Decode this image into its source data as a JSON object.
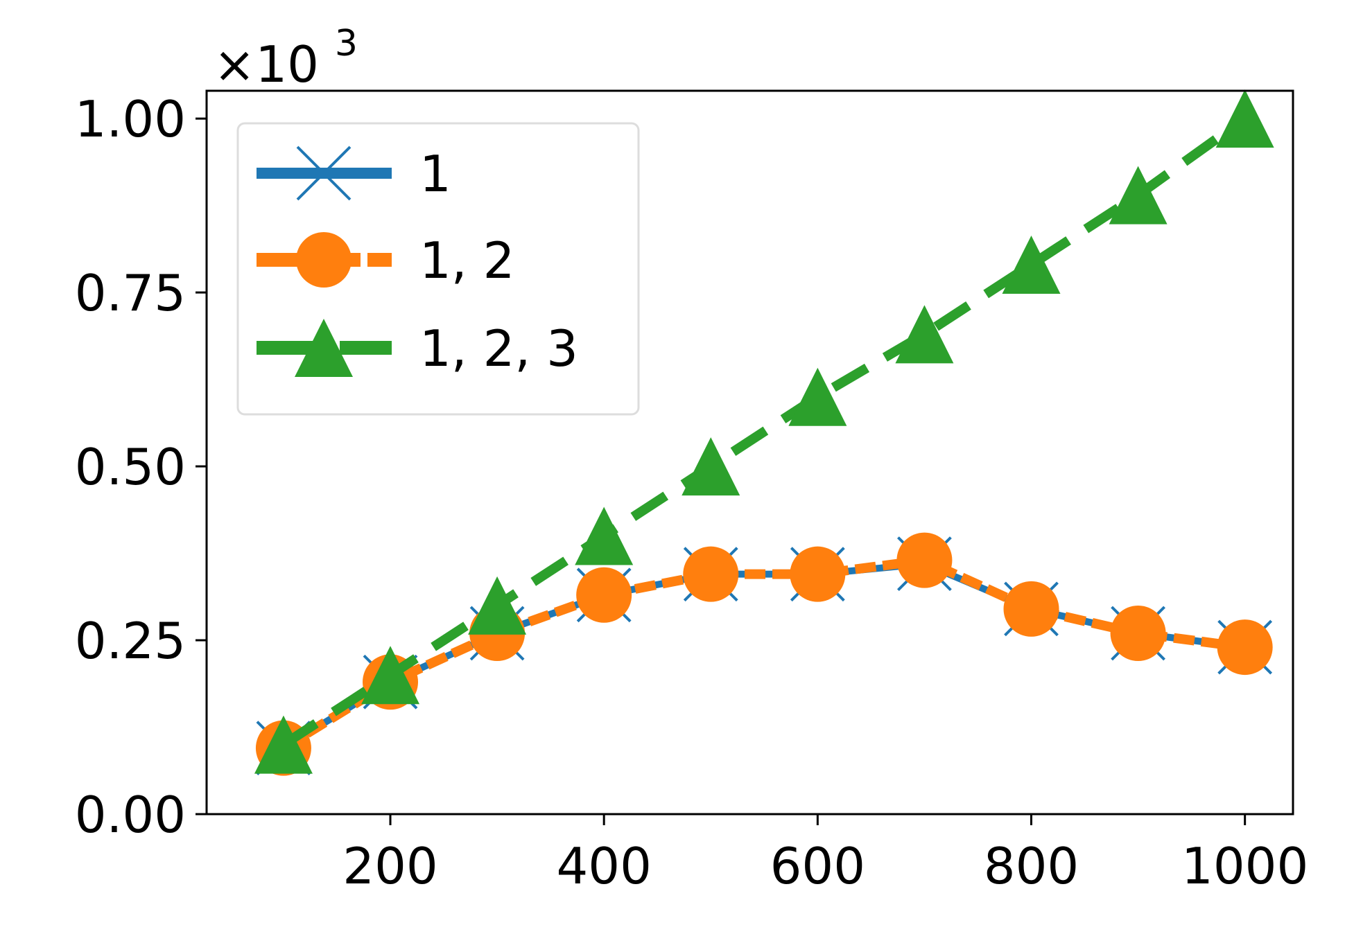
{
  "chart_data": {
    "type": "line",
    "multiplier_label": "×10",
    "multiplier_exponent": "3",
    "x": [
      100,
      200,
      300,
      400,
      500,
      600,
      700,
      800,
      900,
      1000
    ],
    "xlim": [
      28,
      1045
    ],
    "ylim": [
      0.0,
      1.04
    ],
    "x_ticks": [
      200,
      400,
      600,
      800,
      1000
    ],
    "x_tick_labels": [
      "200",
      "400",
      "600",
      "800",
      "1000"
    ],
    "y_ticks": [
      0.0,
      0.25,
      0.5,
      0.75,
      1.0
    ],
    "y_tick_labels": [
      "0.00",
      "0.25",
      "0.50",
      "0.75",
      "1.00"
    ],
    "grid": false,
    "legend_position": "top-left",
    "series": [
      {
        "name": "1",
        "color": "#1f77b4",
        "marker": "x",
        "line_style": "solid",
        "values": [
          0.095,
          0.19,
          0.26,
          0.315,
          0.345,
          0.345,
          0.36,
          0.295,
          0.26,
          0.24
        ]
      },
      {
        "name": "1, 2",
        "color": "#ff7f0e",
        "marker": "circle",
        "line_style": "dash",
        "values": [
          0.095,
          0.19,
          0.26,
          0.315,
          0.345,
          0.345,
          0.365,
          0.295,
          0.26,
          0.24
        ]
      },
      {
        "name": "1, 2, 3",
        "color": "#2ca02c",
        "marker": "triangle",
        "line_style": "long-dash",
        "values": [
          0.1,
          0.2,
          0.3,
          0.4,
          0.5,
          0.6,
          0.69,
          0.79,
          0.89,
          1.0
        ]
      }
    ]
  }
}
